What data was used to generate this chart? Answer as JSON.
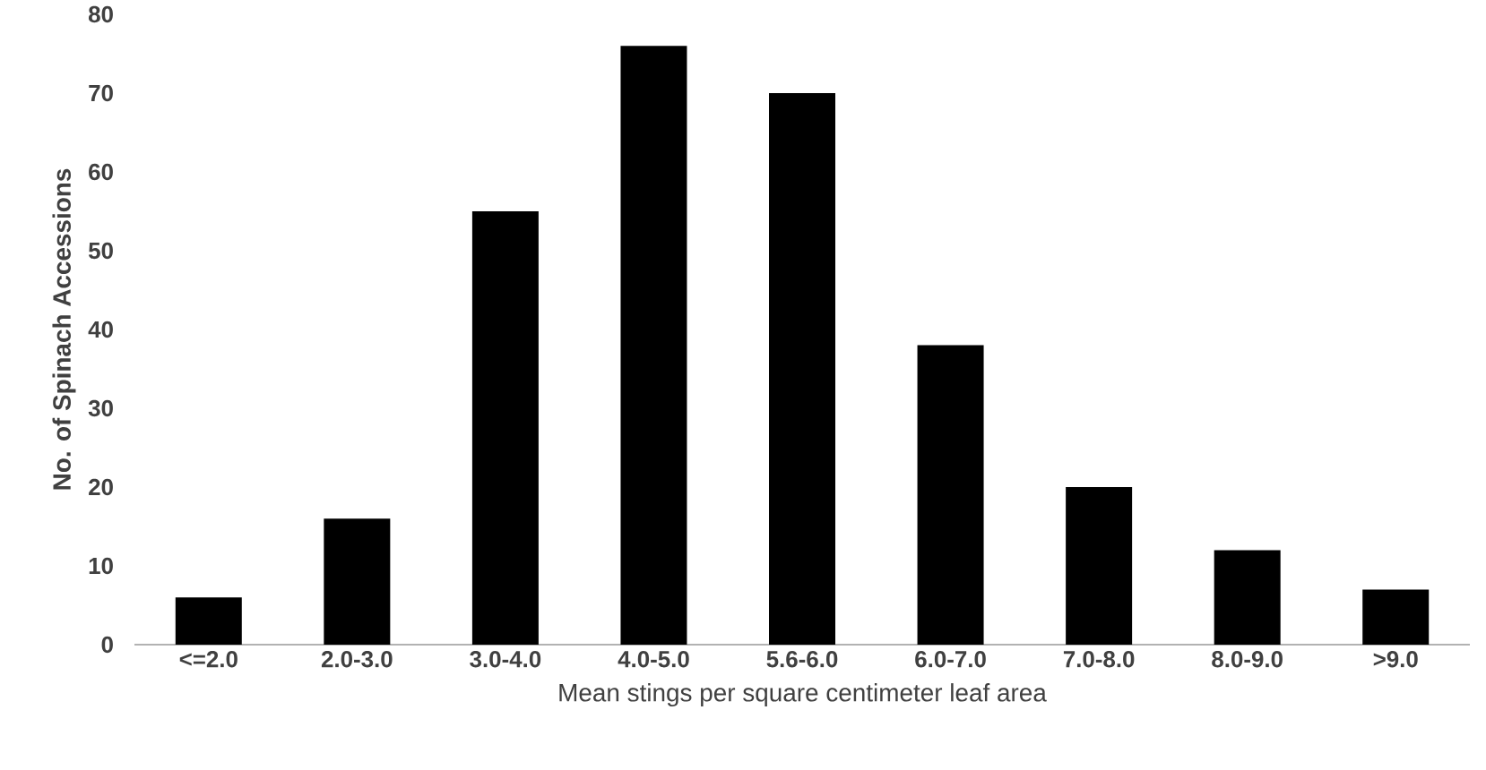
{
  "chart_data": {
    "type": "bar",
    "xlabel": "Mean stings per square centimeter leaf area",
    "ylabel": "No. of Spinach Accessions",
    "categories": [
      "<=2.0",
      "2.0-3.0",
      "3.0-4.0",
      "4.0-5.0",
      "5.6-6.0",
      "6.0-7.0",
      "7.0-8.0",
      "8.0-9.0",
      ">9.0"
    ],
    "values": [
      6,
      16,
      55,
      76,
      70,
      38,
      20,
      12,
      7
    ],
    "color": "#000000",
    "ylim": [
      0,
      80
    ],
    "yticks": [
      0,
      10,
      20,
      30,
      40,
      50,
      60,
      70,
      80
    ]
  }
}
